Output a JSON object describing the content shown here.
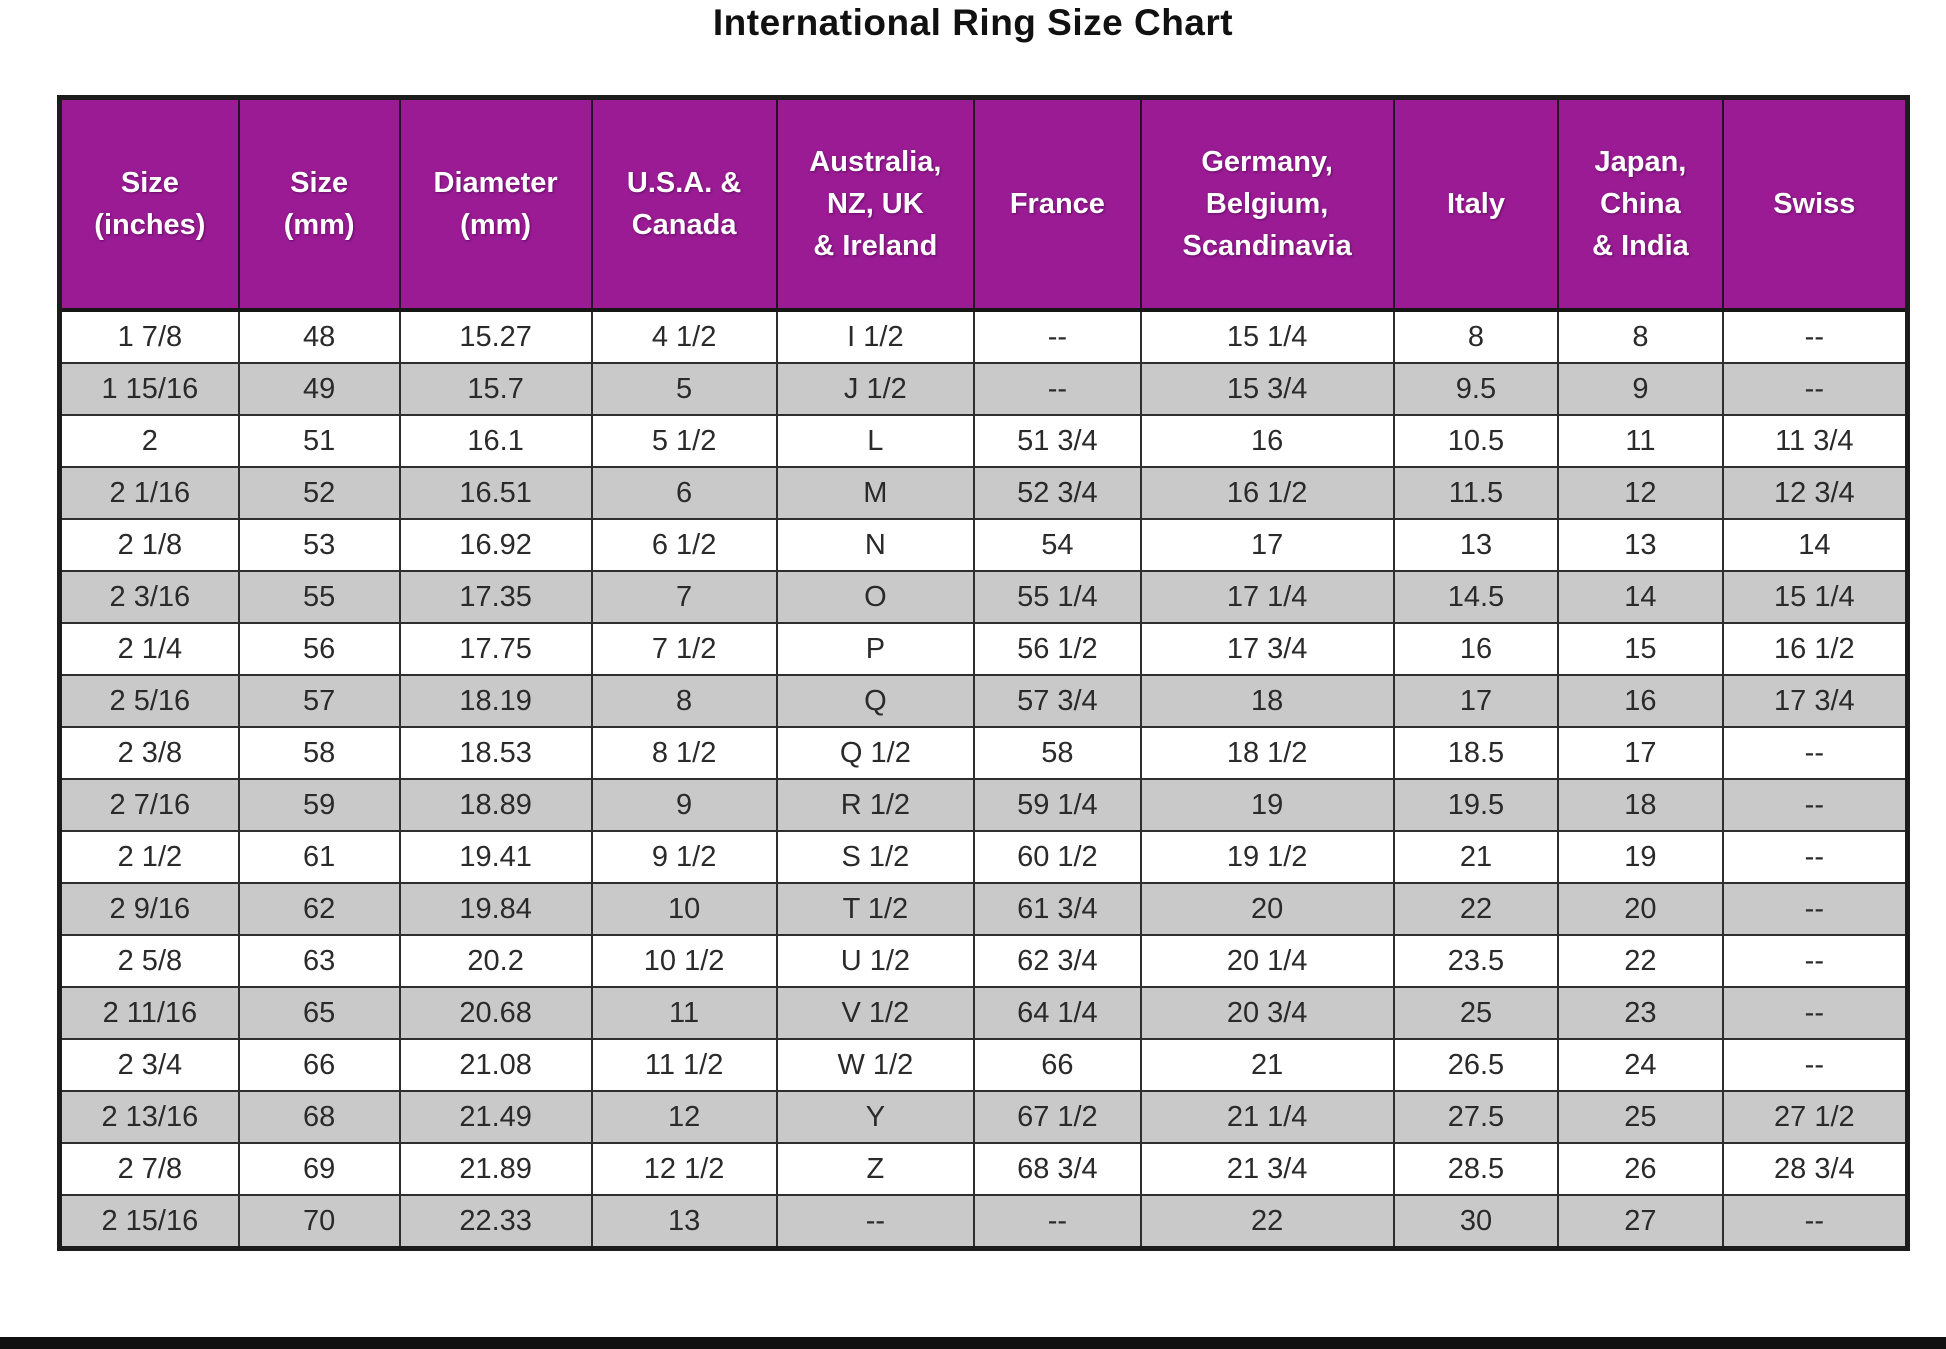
{
  "title": "International Ring Size Chart",
  "colors": {
    "header_bg": "#9a1b94",
    "header_text": "#ffffff",
    "row_white": "#ffffff",
    "row_gray": "#c9c9c9",
    "border": "#2e2e2e",
    "text": "#2a2a2a"
  },
  "chart_data": {
    "type": "table",
    "title": "International Ring Size Chart",
    "columns": [
      "Size\n(inches)",
      "Size\n(mm)",
      "Diameter\n(mm)",
      "U.S.A. &\nCanada",
      "Australia,\nNZ, UK\n& Ireland",
      "France",
      "Germany,\nBelgium,\nScandinavia",
      "Italy",
      "Japan,\nChina\n& India",
      "Swiss"
    ],
    "rows": [
      [
        "1 7/8",
        "48",
        "15.27",
        "4 1/2",
        "I 1/2",
        "--",
        "15 1/4",
        "8",
        "8",
        "--"
      ],
      [
        "1 15/16",
        "49",
        "15.7",
        "5",
        "J 1/2",
        "--",
        "15 3/4",
        "9.5",
        "9",
        "--"
      ],
      [
        "2",
        "51",
        "16.1",
        "5 1/2",
        "L",
        "51 3/4",
        "16",
        "10.5",
        "11",
        "11 3/4"
      ],
      [
        "2 1/16",
        "52",
        "16.51",
        "6",
        "M",
        "52 3/4",
        "16 1/2",
        "11.5",
        "12",
        "12 3/4"
      ],
      [
        "2 1/8",
        "53",
        "16.92",
        "6 1/2",
        "N",
        "54",
        "17",
        "13",
        "13",
        "14"
      ],
      [
        "2 3/16",
        "55",
        "17.35",
        "7",
        "O",
        "55 1/4",
        "17 1/4",
        "14.5",
        "14",
        "15 1/4"
      ],
      [
        "2 1/4",
        "56",
        "17.75",
        "7 1/2",
        "P",
        "56 1/2",
        "17 3/4",
        "16",
        "15",
        "16 1/2"
      ],
      [
        "2 5/16",
        "57",
        "18.19",
        "8",
        "Q",
        "57 3/4",
        "18",
        "17",
        "16",
        "17 3/4"
      ],
      [
        "2 3/8",
        "58",
        "18.53",
        "8 1/2",
        "Q 1/2",
        "58",
        "18 1/2",
        "18.5",
        "17",
        "--"
      ],
      [
        "2 7/16",
        "59",
        "18.89",
        "9",
        "R 1/2",
        "59 1/4",
        "19",
        "19.5",
        "18",
        "--"
      ],
      [
        "2 1/2",
        "61",
        "19.41",
        "9 1/2",
        "S 1/2",
        "60 1/2",
        "19 1/2",
        "21",
        "19",
        "--"
      ],
      [
        "2 9/16",
        "62",
        "19.84",
        "10",
        "T 1/2",
        "61 3/4",
        "20",
        "22",
        "20",
        "--"
      ],
      [
        "2 5/8",
        "63",
        "20.2",
        "10 1/2",
        "U 1/2",
        "62 3/4",
        "20 1/4",
        "23.5",
        "22",
        "--"
      ],
      [
        "2 11/16",
        "65",
        "20.68",
        "11",
        "V 1/2",
        "64 1/4",
        "20 3/4",
        "25",
        "23",
        "--"
      ],
      [
        "2 3/4",
        "66",
        "21.08",
        "11 1/2",
        "W 1/2",
        "66",
        "21",
        "26.5",
        "24",
        "--"
      ],
      [
        "2 13/16",
        "68",
        "21.49",
        "12",
        "Y",
        "67 1/2",
        "21 1/4",
        "27.5",
        "25",
        "27 1/2"
      ],
      [
        "2 7/8",
        "69",
        "21.89",
        "12 1/2",
        "Z",
        "68 3/4",
        "21 3/4",
        "28.5",
        "26",
        "28 3/4"
      ],
      [
        "2 15/16",
        "70",
        "22.33",
        "13",
        "--",
        "--",
        "22",
        "30",
        "27",
        "--"
      ]
    ],
    "layout": {
      "striped_rows": true,
      "first_data_row_bg": "white",
      "header_position": "top"
    }
  }
}
